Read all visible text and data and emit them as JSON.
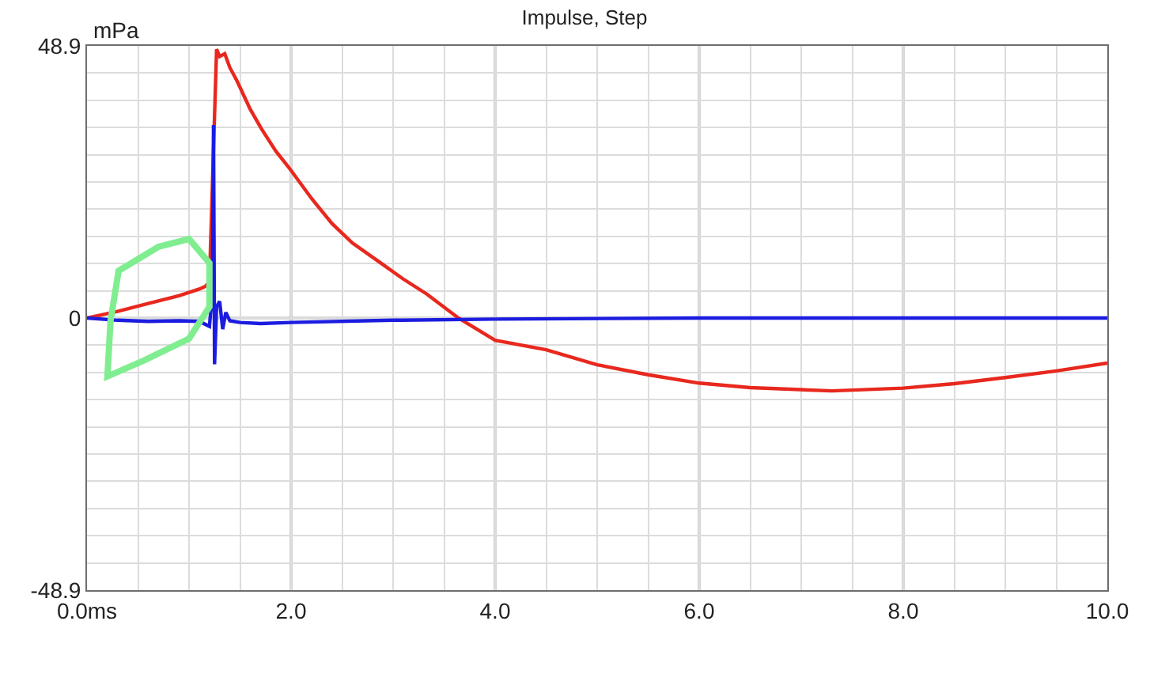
{
  "chart_data": {
    "type": "line",
    "title": "Impulse, Step",
    "ylabel": "mPa",
    "xlim": [
      0,
      10
    ],
    "xticks": [
      {
        "value": 0,
        "label": "0.0ms"
      },
      {
        "value": 0.5,
        "label": null
      },
      {
        "value": 1,
        "label": null
      },
      {
        "value": 1.5,
        "label": null
      },
      {
        "value": 2,
        "label": "2.0"
      },
      {
        "value": 2.5,
        "label": null
      },
      {
        "value": 3,
        "label": null
      },
      {
        "value": 3.5,
        "label": null
      },
      {
        "value": 4,
        "label": "4.0"
      },
      {
        "value": 4.5,
        "label": null
      },
      {
        "value": 5,
        "label": null
      },
      {
        "value": 5.5,
        "label": null
      },
      {
        "value": 6,
        "label": "6.0"
      },
      {
        "value": 6.5,
        "label": null
      },
      {
        "value": 7,
        "label": null
      },
      {
        "value": 7.5,
        "label": null
      },
      {
        "value": 8,
        "label": "8.0"
      },
      {
        "value": 8.5,
        "label": null
      },
      {
        "value": 9,
        "label": null
      },
      {
        "value": 9.5,
        "label": null
      },
      {
        "value": 10,
        "label": "10.0"
      }
    ],
    "ylim": [
      -48.9,
      48.9
    ],
    "yticks": [
      -48.9,
      {
        "value": -44.01,
        "label": null
      },
      {
        "value": -39.12,
        "label": null
      },
      {
        "value": -34.23,
        "label": null
      },
      {
        "value": -29.34,
        "label": null
      },
      {
        "value": -24.45,
        "label": null
      },
      {
        "value": -19.56,
        "label": null
      },
      {
        "value": -14.67,
        "label": null
      },
      {
        "value": -9.78,
        "label": null
      },
      {
        "value": -4.89,
        "label": null
      },
      0,
      {
        "value": 4.89,
        "label": null
      },
      {
        "value": 9.78,
        "label": null
      },
      {
        "value": 14.67,
        "label": null
      },
      {
        "value": 19.56,
        "label": null
      },
      {
        "value": 24.45,
        "label": null
      },
      {
        "value": 29.34,
        "label": null
      },
      {
        "value": 34.23,
        "label": null
      },
      {
        "value": 39.12,
        "label": null
      },
      {
        "value": 44.01,
        "label": null
      },
      48.9
    ],
    "grid": true,
    "marker": "none",
    "line_style": "solid",
    "series": [
      {
        "color": "#e8281e",
        "x": [
          0,
          0.3,
          0.6,
          0.9,
          1.1,
          1.16,
          1.2,
          1.27,
          1.3,
          1.35,
          1.4,
          1.47,
          1.6,
          1.71,
          1.85,
          1.98,
          2.2,
          2.4,
          2.6,
          2.87,
          3.1,
          3.33,
          3.64,
          4.0,
          4.5,
          5.0,
          5.5,
          6.0,
          6.5,
          7.3,
          8.0,
          8.5,
          9.0,
          9.5,
          10.0
        ],
        "values": [
          0,
          1.2,
          2.6,
          4.0,
          5.2,
          5.7,
          6.5,
          48.3,
          47,
          47.5,
          45,
          42.6,
          37.5,
          34,
          30,
          27,
          21.5,
          17,
          13.5,
          10,
          7,
          4.3,
          0,
          -4,
          -5.7,
          -8.4,
          -10.2,
          -11.7,
          -12.5,
          -13.1,
          -12.6,
          -11.8,
          -10.7,
          -9.5,
          -8.1
        ]
      },
      {
        "color": "#1c1ce0",
        "x": [
          0,
          0.3,
          0.6,
          0.9,
          1.1,
          1.2,
          1.23,
          1.24,
          1.25,
          1.27,
          1.3,
          1.33,
          1.36,
          1.4,
          1.5,
          1.7,
          2.0,
          3.0,
          4.0,
          6.0,
          8.0,
          10.0
        ],
        "values": [
          0,
          -0.4,
          -0.6,
          -0.5,
          -0.6,
          -1.5,
          5,
          34.7,
          -8.3,
          2,
          3,
          -2,
          1,
          -0.5,
          -0.8,
          -1,
          -0.8,
          -0.4,
          -0.2,
          0,
          0,
          0
        ]
      }
    ]
  }
}
